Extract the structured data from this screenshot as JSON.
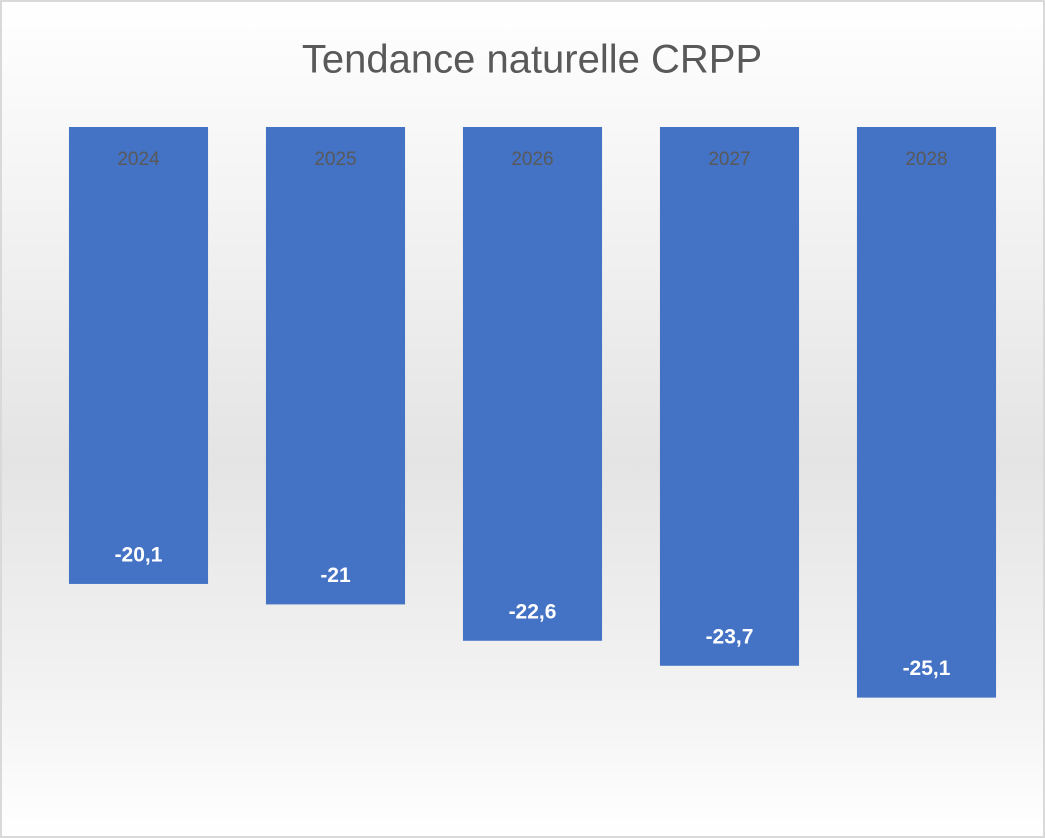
{
  "chart_data": {
    "type": "bar",
    "title": "Tendance naturelle CRPP",
    "categories": [
      "2024",
      "2025",
      "2026",
      "2027",
      "2028"
    ],
    "values": [
      -20.1,
      -21,
      -22.6,
      -23.7,
      -25.1
    ],
    "value_labels": [
      "-20,1",
      "-21",
      "-22,6",
      "-23,7",
      "-25,1"
    ],
    "color": "#4472c4",
    "ylim": [
      -30,
      0
    ]
  }
}
